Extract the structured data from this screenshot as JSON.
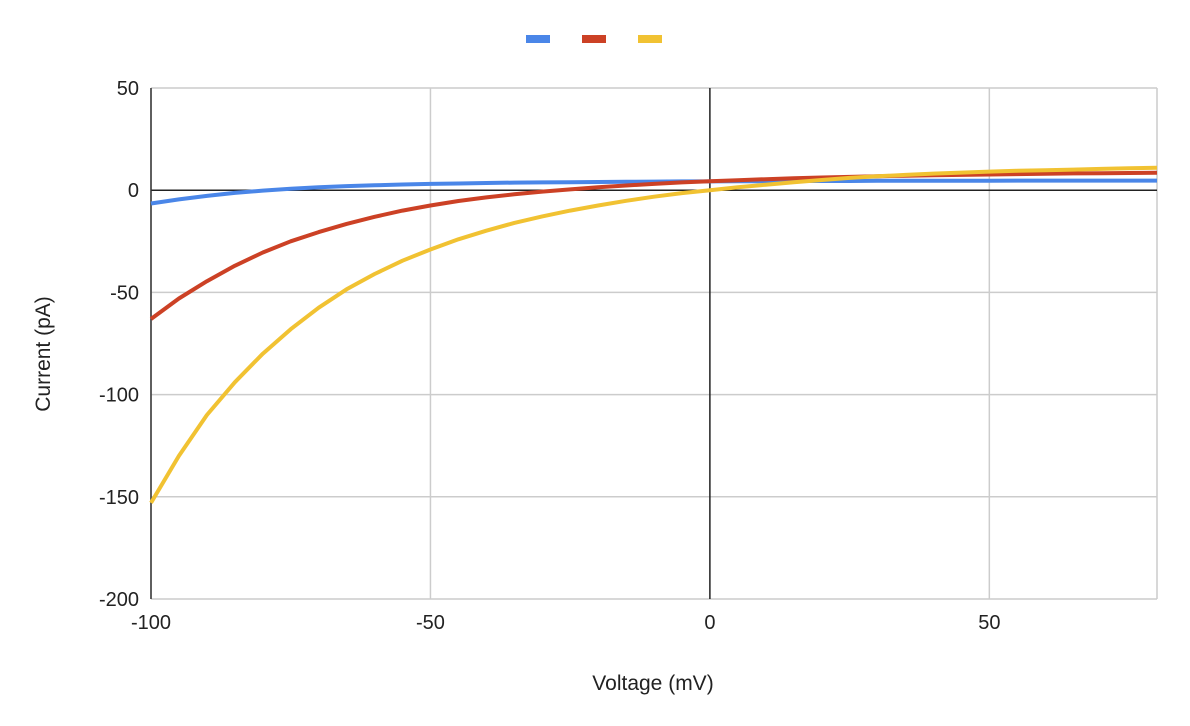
{
  "chart_data": {
    "type": "line",
    "title": "",
    "xlabel": "Voltage (mV)",
    "ylabel": "Current (pA)",
    "xlim": [
      -100,
      80
    ],
    "ylim": [
      -200,
      50
    ],
    "x_ticks": [
      -100,
      -50,
      0,
      50
    ],
    "y_ticks": [
      50,
      0,
      -50,
      -100,
      -150,
      -200
    ],
    "grid": true,
    "legend_position": "top",
    "x": [
      -100,
      -95,
      -90,
      -85,
      -80,
      -75,
      -70,
      -65,
      -60,
      -55,
      -50,
      -45,
      -40,
      -35,
      -30,
      -25,
      -20,
      -15,
      -10,
      -5,
      0,
      5,
      10,
      15,
      20,
      25,
      30,
      35,
      40,
      45,
      50,
      55,
      60,
      65,
      70,
      75,
      80
    ],
    "series": [
      {
        "color": "#4a86e8",
        "values": [
          -6.5,
          -4.5,
          -2.8,
          -1.3,
          -0.2,
          0.7,
          1.4,
          2.0,
          2.4,
          2.8,
          3.1,
          3.3,
          3.5,
          3.7,
          3.8,
          3.9,
          4.0,
          4.1,
          4.2,
          4.3,
          4.3,
          4.4,
          4.4,
          4.5,
          4.5,
          4.5,
          4.6,
          4.6,
          4.6,
          4.6,
          4.6,
          4.7,
          4.7,
          4.7,
          4.7,
          4.7,
          4.7
        ]
      },
      {
        "color": "#cc4125",
        "values": [
          -63,
          -53,
          -44.5,
          -37,
          -30.5,
          -25,
          -20.5,
          -16.5,
          -13,
          -10,
          -7.5,
          -5.3,
          -3.5,
          -2,
          -0.7,
          0.4,
          1.4,
          2.3,
          3.1,
          3.8,
          4.4,
          4.9,
          5.4,
          5.8,
          6.2,
          6.5,
          6.8,
          7.1,
          7.3,
          7.5,
          7.7,
          7.9,
          8.0,
          8.2,
          8.3,
          8.4,
          8.5
        ]
      },
      {
        "color": "#f1c232",
        "values": [
          -153,
          -130,
          -110,
          -94,
          -80,
          -68,
          -57.5,
          -48.5,
          -41,
          -34.5,
          -29,
          -24,
          -19.8,
          -16,
          -12.8,
          -10,
          -7.5,
          -5.2,
          -3.2,
          -1.4,
          0,
          1.4,
          2.7,
          3.9,
          5.0,
          6.0,
          6.8,
          7.5,
          8.1,
          8.6,
          9.1,
          9.5,
          9.8,
          10.1,
          10.4,
          10.7,
          11.0
        ]
      }
    ]
  }
}
